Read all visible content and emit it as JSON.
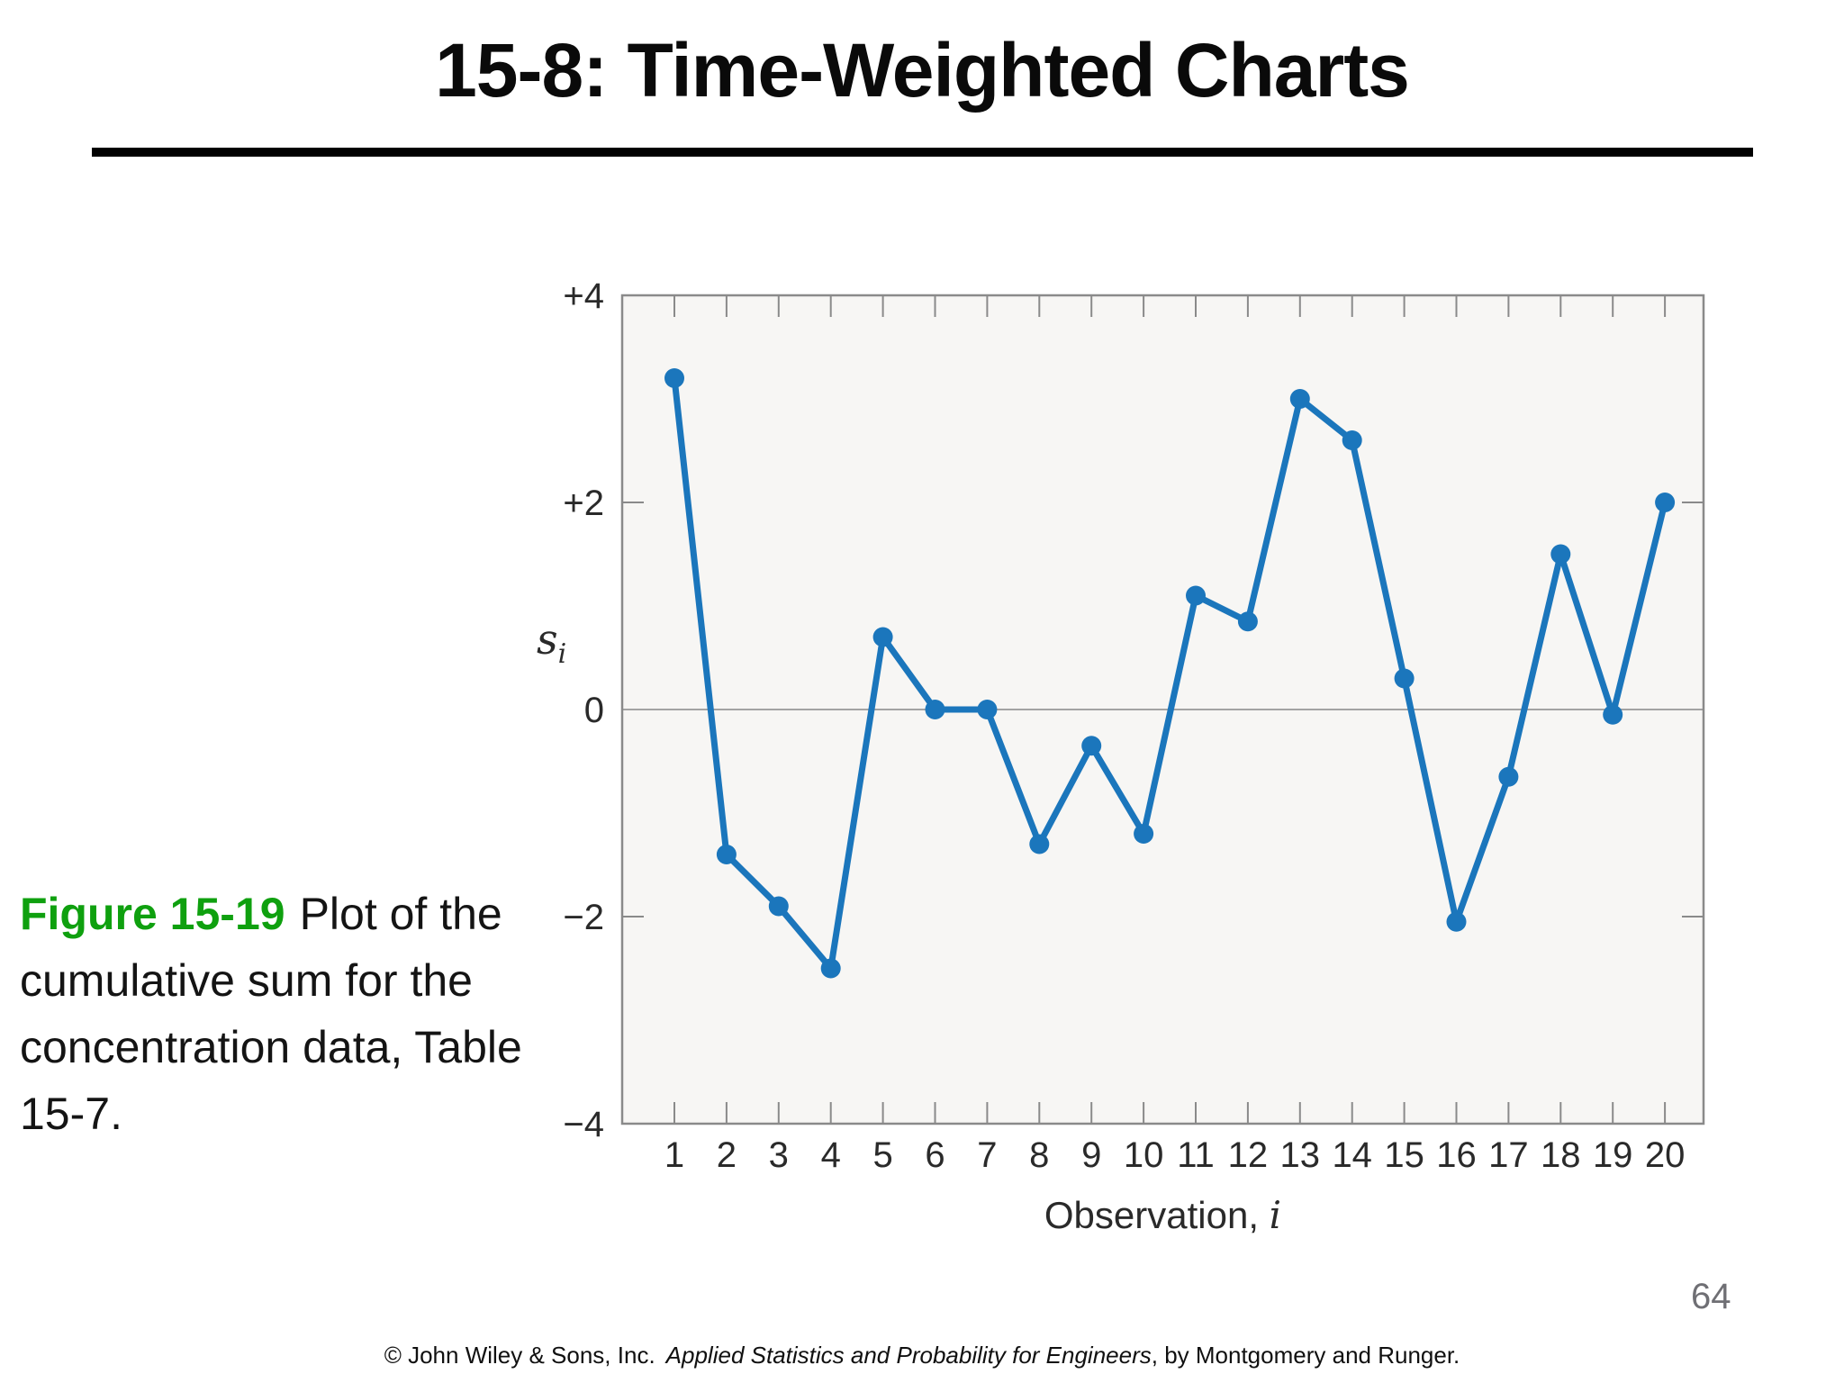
{
  "slide": {
    "title": "15-8: Time-Weighted Charts",
    "page_number": "64",
    "caption": {
      "figure_label": "Figure 15-19",
      "text": "Plot of the cumulative sum for the concentration data, Table 15-7."
    },
    "footer": {
      "prefix": "© John Wiley & Sons, Inc.",
      "book_title": "Applied Statistics and Probability for Engineers",
      "suffix": ", by Montgomery and Runger."
    }
  },
  "colors": {
    "caption_green": "#0fa00f",
    "line_blue": "#1b76bc",
    "plot_background": "#f7f6f4",
    "axis_border": "#8a8a8a",
    "zero_gridline": "#a3a3a3",
    "tick_text": "#2a2a2a",
    "page_number_gray": "#6f6f74"
  },
  "chart_data": {
    "type": "line",
    "title": "",
    "xlabel_regular": "Observation, ",
    "xlabel_italic": "i",
    "ylabel_main": "s",
    "ylabel_sub": "i",
    "x": [
      1,
      2,
      3,
      4,
      5,
      6,
      7,
      8,
      9,
      10,
      11,
      12,
      13,
      14,
      15,
      16,
      17,
      18,
      19,
      20
    ],
    "values": [
      3.2,
      -1.4,
      -1.9,
      -2.5,
      0.7,
      0.0,
      0.0,
      -1.3,
      -0.35,
      -1.2,
      1.1,
      0.85,
      3.0,
      2.6,
      0.3,
      -2.05,
      -0.65,
      1.5,
      -0.05,
      2.0
    ],
    "ylim": [
      -4,
      4
    ],
    "yticks": [
      4,
      2,
      0,
      -2,
      -4
    ],
    "ytick_labels": [
      "+4",
      "+2",
      "0",
      "−2",
      "−4"
    ],
    "grid": "zero-line-only",
    "legend": "none",
    "marker": "circle"
  }
}
